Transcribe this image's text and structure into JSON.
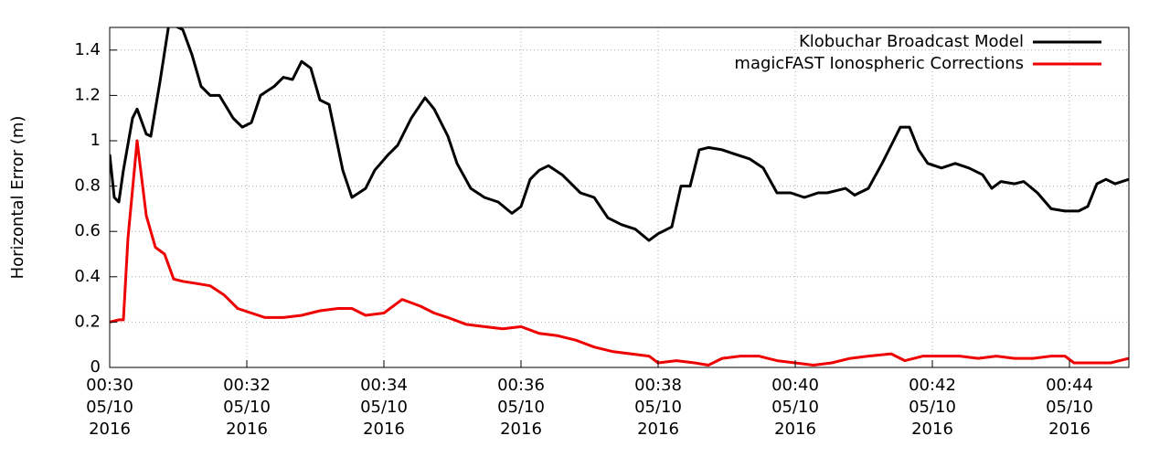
{
  "chart_data": {
    "type": "line",
    "ylabel": "Horizontal Error (m)",
    "xlim": [
      "00:30:00",
      "00:44:52"
    ],
    "xticks": [
      {
        "value": "00:30",
        "label": [
          "00:30",
          "05/10",
          "2016"
        ]
      },
      {
        "value": "00:32",
        "label": [
          "00:32",
          "05/10",
          "2016"
        ]
      },
      {
        "value": "00:34",
        "label": [
          "00:34",
          "05/10",
          "2016"
        ]
      },
      {
        "value": "00:36",
        "label": [
          "00:36",
          "05/10",
          "2016"
        ]
      },
      {
        "value": "00:38",
        "label": [
          "00:38",
          "05/10",
          "2016"
        ]
      },
      {
        "value": "00:40",
        "label": [
          "00:40",
          "05/10",
          "2016"
        ]
      },
      {
        "value": "00:42",
        "label": [
          "00:42",
          "05/10",
          "2016"
        ]
      },
      {
        "value": "00:44",
        "label": [
          "00:44",
          "05/10",
          "2016"
        ]
      }
    ],
    "ylim": [
      0,
      1.5
    ],
    "yticks": [
      0,
      0.2,
      0.4,
      0.6,
      0.8,
      1,
      1.2,
      1.4
    ],
    "grid": true,
    "legend": "upper right",
    "series": [
      {
        "name": "Klobuchar Broadcast Model",
        "color": "#000000",
        "x": [
          "00:30:00",
          "00:30:04",
          "00:30:08",
          "00:30:12",
          "00:30:20",
          "00:30:24",
          "00:30:32",
          "00:30:36",
          "00:30:44",
          "00:30:52",
          "00:31:04",
          "00:31:12",
          "00:31:20",
          "00:31:28",
          "00:31:36",
          "00:31:48",
          "00:31:56",
          "00:32:04",
          "00:32:12",
          "00:32:24",
          "00:32:32",
          "00:32:40",
          "00:32:48",
          "00:32:56",
          "00:33:04",
          "00:33:12",
          "00:33:24",
          "00:33:32",
          "00:33:44",
          "00:33:52",
          "00:34:04",
          "00:34:12",
          "00:34:24",
          "00:34:36",
          "00:34:44",
          "00:34:56",
          "00:35:04",
          "00:35:16",
          "00:35:28",
          "00:35:40",
          "00:35:52",
          "00:36:00",
          "00:36:08",
          "00:36:16",
          "00:36:24",
          "00:36:36",
          "00:36:44",
          "00:36:52",
          "00:37:04",
          "00:37:16",
          "00:37:28",
          "00:37:40",
          "00:37:52",
          "00:38:00",
          "00:38:12",
          "00:38:20",
          "00:38:28",
          "00:38:36",
          "00:38:44",
          "00:38:56",
          "00:39:08",
          "00:39:20",
          "00:39:32",
          "00:39:44",
          "00:39:56",
          "00:40:08",
          "00:40:20",
          "00:40:28",
          "00:40:36",
          "00:40:44",
          "00:40:52",
          "00:41:04",
          "00:41:16",
          "00:41:24",
          "00:41:32",
          "00:41:40",
          "00:41:48",
          "00:41:56",
          "00:42:08",
          "00:42:20",
          "00:42:32",
          "00:42:44",
          "00:42:52",
          "00:43:00",
          "00:43:12",
          "00:43:20",
          "00:43:32",
          "00:43:44",
          "00:43:56",
          "00:44:08",
          "00:44:16",
          "00:44:24",
          "00:44:32",
          "00:44:40",
          "00:44:52"
        ],
        "values": [
          0.94,
          0.75,
          0.73,
          0.87,
          1.1,
          1.14,
          1.03,
          1.02,
          1.26,
          1.52,
          1.49,
          1.38,
          1.24,
          1.2,
          1.2,
          1.1,
          1.06,
          1.08,
          1.2,
          1.24,
          1.28,
          1.27,
          1.35,
          1.32,
          1.18,
          1.16,
          0.87,
          0.75,
          0.79,
          0.87,
          0.94,
          0.98,
          1.1,
          1.19,
          1.14,
          1.02,
          0.9,
          0.79,
          0.75,
          0.73,
          0.68,
          0.71,
          0.83,
          0.87,
          0.89,
          0.85,
          0.81,
          0.77,
          0.75,
          0.66,
          0.63,
          0.61,
          0.56,
          0.59,
          0.62,
          0.8,
          0.8,
          0.96,
          0.97,
          0.96,
          0.94,
          0.92,
          0.88,
          0.77,
          0.77,
          0.75,
          0.77,
          0.77,
          0.78,
          0.79,
          0.76,
          0.79,
          0.9,
          0.98,
          1.06,
          1.06,
          0.96,
          0.9,
          0.88,
          0.9,
          0.88,
          0.85,
          0.79,
          0.82,
          0.81,
          0.82,
          0.77,
          0.7,
          0.69,
          0.69,
          0.71,
          0.81,
          0.83,
          0.81,
          0.83
        ]
      },
      {
        "name": "magicFAST Ionospheric Corrections",
        "color": "#ee0000",
        "x": [
          "00:30:00",
          "00:30:08",
          "00:30:12",
          "00:30:16",
          "00:30:24",
          "00:30:32",
          "00:30:40",
          "00:30:48",
          "00:30:56",
          "00:31:04",
          "00:31:16",
          "00:31:28",
          "00:31:40",
          "00:31:52",
          "00:32:04",
          "00:32:16",
          "00:32:32",
          "00:32:48",
          "00:33:04",
          "00:33:20",
          "00:33:32",
          "00:33:44",
          "00:34:00",
          "00:34:16",
          "00:34:32",
          "00:34:44",
          "00:34:56",
          "00:35:12",
          "00:35:28",
          "00:35:44",
          "00:36:00",
          "00:36:16",
          "00:36:32",
          "00:36:48",
          "00:37:04",
          "00:37:20",
          "00:37:36",
          "00:37:52",
          "00:38:00",
          "00:38:16",
          "00:38:32",
          "00:38:44",
          "00:38:56",
          "00:39:12",
          "00:39:28",
          "00:39:44",
          "00:40:00",
          "00:40:16",
          "00:40:32",
          "00:40:48",
          "00:41:04",
          "00:41:24",
          "00:41:36",
          "00:41:52",
          "00:42:08",
          "00:42:24",
          "00:42:40",
          "00:42:56",
          "00:43:12",
          "00:43:28",
          "00:43:44",
          "00:43:56",
          "00:44:04",
          "00:44:20",
          "00:44:36",
          "00:44:52"
        ],
        "values": [
          0.2,
          0.21,
          0.21,
          0.57,
          1.0,
          0.67,
          0.53,
          0.5,
          0.39,
          0.38,
          0.37,
          0.36,
          0.32,
          0.26,
          0.24,
          0.22,
          0.22,
          0.23,
          0.25,
          0.26,
          0.26,
          0.23,
          0.24,
          0.3,
          0.27,
          0.24,
          0.22,
          0.19,
          0.18,
          0.17,
          0.18,
          0.15,
          0.14,
          0.12,
          0.09,
          0.07,
          0.06,
          0.05,
          0.02,
          0.03,
          0.02,
          0.01,
          0.04,
          0.05,
          0.05,
          0.03,
          0.02,
          0.01,
          0.02,
          0.04,
          0.05,
          0.06,
          0.03,
          0.05,
          0.05,
          0.05,
          0.04,
          0.05,
          0.04,
          0.04,
          0.05,
          0.05,
          0.02,
          0.02,
          0.02,
          0.04
        ]
      }
    ]
  }
}
